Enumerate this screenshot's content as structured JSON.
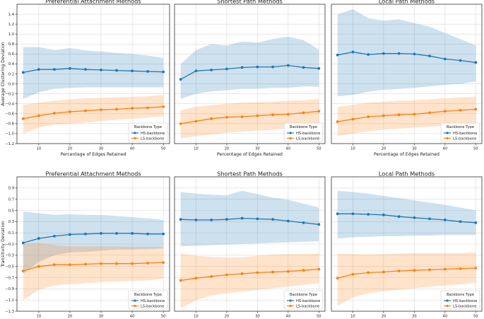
{
  "colors": {
    "hs": "#1f77b4",
    "ls": "#ff7f0e",
    "hs_band": "#1f77b4",
    "ls_band": "#ff7f0e"
  },
  "chart_data": [
    {
      "type": "line",
      "row": 0,
      "col": 0,
      "title": "Preferential Attachment Methods",
      "xlabel": "Percentage of Edges Retained",
      "ylabel": "Average Clustering Deviation",
      "xlim": [
        3,
        52
      ],
      "ylim": [
        -1.2,
        1.6
      ],
      "x": [
        5,
        10,
        15,
        20,
        25,
        30,
        35,
        40,
        45,
        50
      ],
      "xticks": [
        10,
        20,
        30,
        40,
        50
      ],
      "xtick_labels": [
        "10",
        "20",
        "30",
        "40",
        "50"
      ],
      "yticks": [
        -1.2,
        -1.0,
        -0.8,
        -0.6,
        -0.4,
        -0.2,
        0.0,
        0.2,
        0.4,
        0.6,
        0.8,
        1.0,
        1.2,
        1.4
      ],
      "ytick_labels": [
        "−1.2",
        "−1.0",
        "−0.8",
        "−0.6",
        "−0.4",
        "−0.2",
        "0.0",
        "0.2",
        "0.4",
        "0.6",
        "0.8",
        "1.0",
        "1.2",
        "1.4"
      ],
      "legend": {
        "title": "Backbone Type",
        "position": "lower-right",
        "entries": [
          "HS-backbone",
          "LS-backbone"
        ]
      },
      "series": [
        {
          "name": "HS-backbone",
          "values": [
            0.23,
            0.29,
            0.29,
            0.31,
            0.29,
            0.28,
            0.27,
            0.26,
            0.25,
            0.24
          ],
          "lower": [
            -0.3,
            -0.17,
            -0.1,
            -0.08,
            -0.07,
            -0.07,
            -0.07,
            -0.07,
            -0.07,
            -0.07
          ],
          "upper": [
            0.74,
            0.74,
            0.68,
            0.72,
            0.67,
            0.65,
            0.62,
            0.6,
            0.57,
            0.52
          ]
        },
        {
          "name": "LS-backbone",
          "values": [
            -0.7,
            -0.64,
            -0.59,
            -0.56,
            -0.54,
            -0.52,
            -0.51,
            -0.49,
            -0.48,
            -0.46
          ],
          "lower": [
            -1.0,
            -0.88,
            -0.82,
            -0.8,
            -0.78,
            -0.75,
            -0.72,
            -0.7,
            -0.68,
            -0.65
          ],
          "upper": [
            -0.42,
            -0.38,
            -0.34,
            -0.31,
            -0.29,
            -0.28,
            -0.27,
            -0.26,
            -0.25,
            -0.22
          ]
        }
      ]
    },
    {
      "type": "line",
      "row": 0,
      "col": 1,
      "title": "Shortest Path Methods",
      "xlabel": "Percentage of Edges Retained",
      "ylabel": "",
      "xlim": [
        3,
        52
      ],
      "ylim": [
        -1.2,
        1.6
      ],
      "x": [
        5,
        10,
        15,
        20,
        25,
        30,
        35,
        40,
        45,
        50
      ],
      "xticks": [
        10,
        20,
        30,
        40,
        50
      ],
      "xtick_labels": [
        "10",
        "20",
        "30",
        "40",
        "50"
      ],
      "yticks": [],
      "ytick_labels": [],
      "legend": {
        "title": "Backbone Type",
        "position": "lower-right",
        "entries": [
          "HS-backbone",
          "LS-backbone"
        ]
      },
      "series": [
        {
          "name": "HS-backbone",
          "values": [
            0.09,
            0.26,
            0.28,
            0.3,
            0.33,
            0.34,
            0.34,
            0.37,
            0.33,
            0.31
          ],
          "lower": [
            -0.3,
            -0.2,
            -0.15,
            -0.13,
            -0.1,
            -0.1,
            -0.08,
            -0.08,
            -0.05,
            -0.06
          ],
          "upper": [
            0.4,
            0.68,
            0.8,
            0.77,
            0.85,
            0.83,
            0.9,
            0.95,
            0.88,
            0.69
          ]
        },
        {
          "name": "LS-backbone",
          "values": [
            -0.8,
            -0.75,
            -0.7,
            -0.67,
            -0.66,
            -0.64,
            -0.62,
            -0.61,
            -0.58,
            -0.55
          ],
          "lower": [
            -1.1,
            -1.05,
            -1.02,
            -0.98,
            -0.96,
            -0.94,
            -0.92,
            -0.9,
            -0.87,
            -0.84
          ],
          "upper": [
            -0.53,
            -0.46,
            -0.43,
            -0.4,
            -0.38,
            -0.37,
            -0.36,
            -0.34,
            -0.33,
            -0.3
          ]
        }
      ]
    },
    {
      "type": "line",
      "row": 0,
      "col": 2,
      "title": "Local Path Methods",
      "xlabel": "Percentage of Edges Retained",
      "ylabel": "",
      "xlim": [
        3,
        52
      ],
      "ylim": [
        -1.2,
        1.6
      ],
      "x": [
        5,
        10,
        15,
        20,
        25,
        30,
        35,
        40,
        45,
        50
      ],
      "xticks": [
        10,
        20,
        30,
        40,
        50
      ],
      "xtick_labels": [
        "10",
        "20",
        "30",
        "40",
        "50"
      ],
      "yticks": [],
      "ytick_labels": [],
      "legend": {
        "title": "Backbone Type",
        "position": "lower-right",
        "entries": [
          "HS-backbone",
          "LS-backbone"
        ]
      },
      "series": [
        {
          "name": "HS-backbone",
          "values": [
            0.58,
            0.64,
            0.59,
            0.61,
            0.61,
            0.6,
            0.56,
            0.5,
            0.47,
            0.43
          ],
          "lower": [
            -0.25,
            -0.22,
            -0.16,
            -0.12,
            -0.1,
            -0.08,
            -0.05,
            -0.02,
            0.0,
            0.05
          ],
          "upper": [
            1.4,
            1.5,
            1.32,
            1.27,
            1.3,
            1.22,
            1.15,
            1.02,
            0.9,
            0.77
          ]
        },
        {
          "name": "LS-backbone",
          "values": [
            -0.76,
            -0.71,
            -0.66,
            -0.64,
            -0.62,
            -0.61,
            -0.58,
            -0.55,
            -0.53,
            -0.51
          ],
          "lower": [
            -1.05,
            -1.0,
            -0.95,
            -0.92,
            -0.9,
            -0.88,
            -0.86,
            -0.84,
            -0.82,
            -0.8
          ],
          "upper": [
            -0.47,
            -0.42,
            -0.38,
            -0.36,
            -0.34,
            -0.33,
            -0.31,
            -0.29,
            -0.27,
            -0.26
          ]
        }
      ]
    },
    {
      "type": "line",
      "row": 1,
      "col": 0,
      "title": "Preferential Attachment Methods",
      "xlabel": "Percentage of Edges Retained",
      "ylabel": "Transitivity Deviation",
      "xlim": [
        3,
        52
      ],
      "ylim": [
        -1.3,
        1.1
      ],
      "x": [
        5,
        10,
        15,
        20,
        25,
        30,
        35,
        40,
        45,
        50
      ],
      "xticks": [
        10,
        20,
        30,
        40,
        50
      ],
      "xtick_labels": [
        "10",
        "20",
        "30",
        "40",
        "50"
      ],
      "yticks": [
        -1.3,
        -1.1,
        -0.9,
        -0.7,
        -0.5,
        -0.3,
        -0.1,
        0.1,
        0.3,
        0.5,
        0.7,
        0.9
      ],
      "ytick_labels": [
        "−1.3",
        "−1.1",
        "−0.9",
        "−0.7",
        "−0.5",
        "−0.3",
        "−0.1",
        "0.1",
        "0.3",
        "0.5",
        "0.7",
        "0.9"
      ],
      "legend": {
        "title": "Backbone Type",
        "position": "lower-right",
        "entries": [
          "HS-backbone",
          "LS-backbone"
        ]
      },
      "series": [
        {
          "name": "HS-backbone",
          "values": [
            -0.08,
            0.0,
            0.04,
            0.07,
            0.08,
            0.09,
            0.09,
            0.09,
            0.08,
            0.08
          ],
          "lower": [
            -0.63,
            -0.42,
            -0.3,
            -0.25,
            -0.24,
            -0.22,
            -0.2,
            -0.2,
            -0.19,
            -0.18
          ],
          "upper": [
            0.48,
            0.45,
            0.42,
            0.43,
            0.42,
            0.42,
            0.4,
            0.38,
            0.36,
            0.33
          ]
        },
        {
          "name": "LS-backbone",
          "values": [
            -0.58,
            -0.5,
            -0.47,
            -0.47,
            -0.46,
            -0.45,
            -0.45,
            -0.45,
            -0.44,
            -0.43
          ],
          "lower": [
            -1.1,
            -0.92,
            -0.84,
            -0.82,
            -0.8,
            -0.78,
            -0.77,
            -0.76,
            -0.75,
            -0.72
          ],
          "upper": [
            -0.1,
            -0.08,
            -0.12,
            -0.14,
            -0.14,
            -0.14,
            -0.14,
            -0.15,
            -0.15,
            -0.15
          ]
        }
      ]
    },
    {
      "type": "line",
      "row": 1,
      "col": 1,
      "title": "Shortest Path Methods",
      "xlabel": "Percentage of Edges Retained",
      "ylabel": "",
      "xlim": [
        3,
        52
      ],
      "ylim": [
        -1.3,
        1.1
      ],
      "x": [
        5,
        10,
        15,
        20,
        25,
        30,
        35,
        40,
        45,
        50
      ],
      "xticks": [
        10,
        20,
        30,
        40,
        50
      ],
      "xtick_labels": [
        "10",
        "20",
        "30",
        "40",
        "50"
      ],
      "yticks": [],
      "ytick_labels": [],
      "legend": {
        "title": "Backbone Type",
        "position": "lower-right",
        "entries": [
          "HS-backbone",
          "LS-backbone"
        ]
      },
      "series": [
        {
          "name": "HS-backbone",
          "values": [
            0.34,
            0.33,
            0.33,
            0.34,
            0.36,
            0.35,
            0.34,
            0.31,
            0.28,
            0.25
          ],
          "lower": [
            -0.14,
            -0.13,
            -0.12,
            -0.11,
            -0.1,
            -0.09,
            -0.08,
            -0.07,
            -0.06,
            -0.05
          ],
          "upper": [
            0.83,
            0.8,
            0.78,
            0.77,
            0.85,
            0.79,
            0.73,
            0.69,
            0.62,
            0.55
          ]
        },
        {
          "name": "LS-backbone",
          "values": [
            -0.75,
            -0.71,
            -0.68,
            -0.65,
            -0.63,
            -0.61,
            -0.6,
            -0.59,
            -0.57,
            -0.55
          ],
          "lower": [
            -1.25,
            -1.1,
            -1.02,
            -0.98,
            -0.95,
            -0.92,
            -0.89,
            -0.86,
            -0.83,
            -0.8
          ],
          "upper": [
            -0.27,
            -0.31,
            -0.33,
            -0.34,
            -0.34,
            -0.31,
            -0.29,
            -0.28,
            -0.28,
            -0.27
          ]
        }
      ]
    },
    {
      "type": "line",
      "row": 1,
      "col": 2,
      "title": "Local Path Methods",
      "xlabel": "Percentage of Edges Retained",
      "ylabel": "",
      "xlim": [
        3,
        52
      ],
      "ylim": [
        -1.3,
        1.1
      ],
      "x": [
        5,
        10,
        15,
        20,
        25,
        30,
        35,
        40,
        45,
        50
      ],
      "xticks": [
        10,
        20,
        30,
        40,
        50
      ],
      "xtick_labels": [
        "10",
        "20",
        "30",
        "40",
        "50"
      ],
      "yticks": [],
      "ytick_labels": [],
      "legend": {
        "title": "Backbone Type",
        "position": "lower-right",
        "entries": [
          "HS-backbone",
          "LS-backbone"
        ]
      },
      "series": [
        {
          "name": "HS-backbone",
          "values": [
            0.44,
            0.44,
            0.43,
            0.42,
            0.39,
            0.37,
            0.35,
            0.33,
            0.3,
            0.28
          ],
          "lower": [
            0.0,
            0.02,
            0.03,
            0.04,
            0.04,
            0.05,
            0.05,
            0.06,
            0.06,
            0.06
          ],
          "upper": [
            0.85,
            0.83,
            0.8,
            0.76,
            0.72,
            0.68,
            0.64,
            0.6,
            0.55,
            0.5
          ]
        },
        {
          "name": "LS-backbone",
          "values": [
            -0.71,
            -0.64,
            -0.61,
            -0.6,
            -0.58,
            -0.57,
            -0.56,
            -0.55,
            -0.54,
            -0.53
          ],
          "lower": [
            -1.2,
            -1.05,
            -0.98,
            -0.94,
            -0.92,
            -0.89,
            -0.86,
            -0.84,
            -0.82,
            -0.79
          ],
          "upper": [
            -0.27,
            -0.28,
            -0.29,
            -0.28,
            -0.27,
            -0.26,
            -0.26,
            -0.26,
            -0.26,
            -0.25
          ]
        }
      ]
    }
  ]
}
